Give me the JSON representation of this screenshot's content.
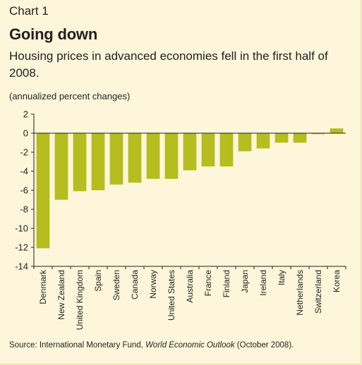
{
  "chart_label": "Chart 1",
  "title": "Going down",
  "subtitle": "Housing prices in advanced economies fell in the first half of 2008.",
  "unit_note": "(annualized percent changes)",
  "source_prefix": "Source: International Monetary Fund, ",
  "source_publication": "World Economic Outlook",
  "source_suffix": " (October 2008).",
  "colors": {
    "background": "#fdf6da",
    "bar": "#b5bd1f",
    "axis": "#231f20"
  },
  "chart_data": {
    "type": "bar",
    "categories": [
      "Denmark",
      "New Zealand",
      "United Kingdom",
      "Spain",
      "Sweden",
      "Canada",
      "Norway",
      "United States",
      "Australia",
      "France",
      "Finland",
      "Japan",
      "Ireland",
      "Italy",
      "Netherlands",
      "Switzerland",
      "Korea"
    ],
    "values": [
      -12.1,
      -7.0,
      -6.1,
      -6.0,
      -5.4,
      -5.2,
      -4.8,
      -4.8,
      -3.9,
      -3.5,
      -3.5,
      -1.9,
      -1.6,
      -1.0,
      -1.0,
      -0.1,
      0.5
    ],
    "ylim": [
      -14,
      2
    ],
    "yticks": [
      2,
      0,
      -2,
      -4,
      -6,
      -8,
      -10,
      -12,
      -14
    ],
    "ylabel": "",
    "xlabel": "",
    "grid": false,
    "legend": "none"
  }
}
